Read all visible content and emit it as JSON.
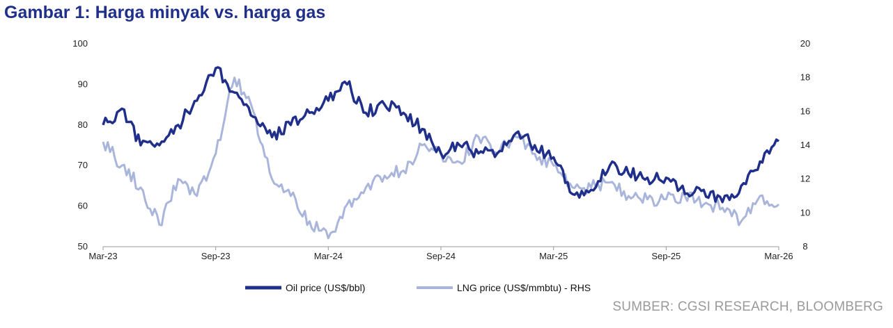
{
  "title": "Gambar 1: Harga minyak vs. harga gas",
  "source": "SUMBER: CGSI RESEARCH, BLOOMBERG",
  "colors": {
    "oil": "#1f2f8a",
    "lng": "#a9b5db",
    "title": "#1f2f8a",
    "source": "#9a9a9a",
    "axis": "#999999"
  },
  "chart_data": {
    "type": "line",
    "title": "",
    "xlabel": "",
    "ylabel": "",
    "x_ticks": [
      "Mar-23",
      "Sep-23",
      "Mar-24",
      "Sep-24",
      "Mar-25",
      "Sep-25",
      "Mar-26"
    ],
    "y_left": {
      "min": 50,
      "max": 100,
      "ticks": [
        "100",
        "90",
        "80",
        "70",
        "60",
        "50"
      ]
    },
    "y_right": {
      "min": 8,
      "max": 20,
      "ticks": [
        "20",
        "18",
        "16",
        "14",
        "12",
        "10",
        "8"
      ]
    },
    "grid": false,
    "legend_position": "bottom",
    "series": [
      {
        "name": "Oil price (US$/bbl)",
        "axis": "left",
        "x": [
          "2023-03",
          "2023-04",
          "2023-05",
          "2023-06",
          "2023-07",
          "2023-08",
          "2023-09",
          "2023-10",
          "2023-11",
          "2023-12",
          "2024-01",
          "2024-02",
          "2024-03",
          "2024-04",
          "2024-05",
          "2024-06",
          "2024-07",
          "2024-08",
          "2024-09",
          "2024-10",
          "2024-11",
          "2024-12",
          "2025-01",
          "2025-02",
          "2025-03",
          "2025-04",
          "2025-05",
          "2025-06",
          "2025-07",
          "2025-08",
          "2025-09",
          "2025-10",
          "2025-11",
          "2025-12",
          "2026-01",
          "2026-02",
          "2026-03"
        ],
        "values": [
          80,
          84,
          75,
          75,
          80,
          86,
          94,
          88,
          82,
          77,
          80,
          83,
          86,
          90,
          83,
          85,
          83,
          79,
          73,
          75,
          73,
          73,
          78,
          75,
          72,
          63,
          64,
          70,
          68,
          67,
          67,
          63,
          64,
          61,
          65,
          71,
          76
        ]
      },
      {
        "name": "LNG price (US$/mmbtu) - RHS",
        "axis": "right",
        "x": [
          "2023-03",
          "2023-04",
          "2023-05",
          "2023-06",
          "2023-07",
          "2023-08",
          "2023-09",
          "2023-10",
          "2023-11",
          "2023-12",
          "2024-01",
          "2024-02",
          "2024-03",
          "2024-04",
          "2024-05",
          "2024-06",
          "2024-07",
          "2024-08",
          "2024-09",
          "2024-10",
          "2024-11",
          "2024-12",
          "2025-01",
          "2025-02",
          "2025-03",
          "2025-04",
          "2025-05",
          "2025-06",
          "2025-07",
          "2025-08",
          "2025-09",
          "2025-10",
          "2025-11",
          "2025-12",
          "2026-01",
          "2026-02",
          "2026-03"
        ],
        "values": [
          14.2,
          12.8,
          11.5,
          9.3,
          12,
          11,
          13.5,
          18,
          16,
          12,
          11,
          9.5,
          8.5,
          10.5,
          11.5,
          12.2,
          12.5,
          14,
          13.5,
          13,
          14.5,
          13.5,
          14.5,
          13.5,
          12.8,
          11.5,
          11.5,
          11.8,
          11,
          10.8,
          10.8,
          11,
          10.5,
          10.3,
          9.5,
          11,
          10.5
        ]
      }
    ]
  }
}
